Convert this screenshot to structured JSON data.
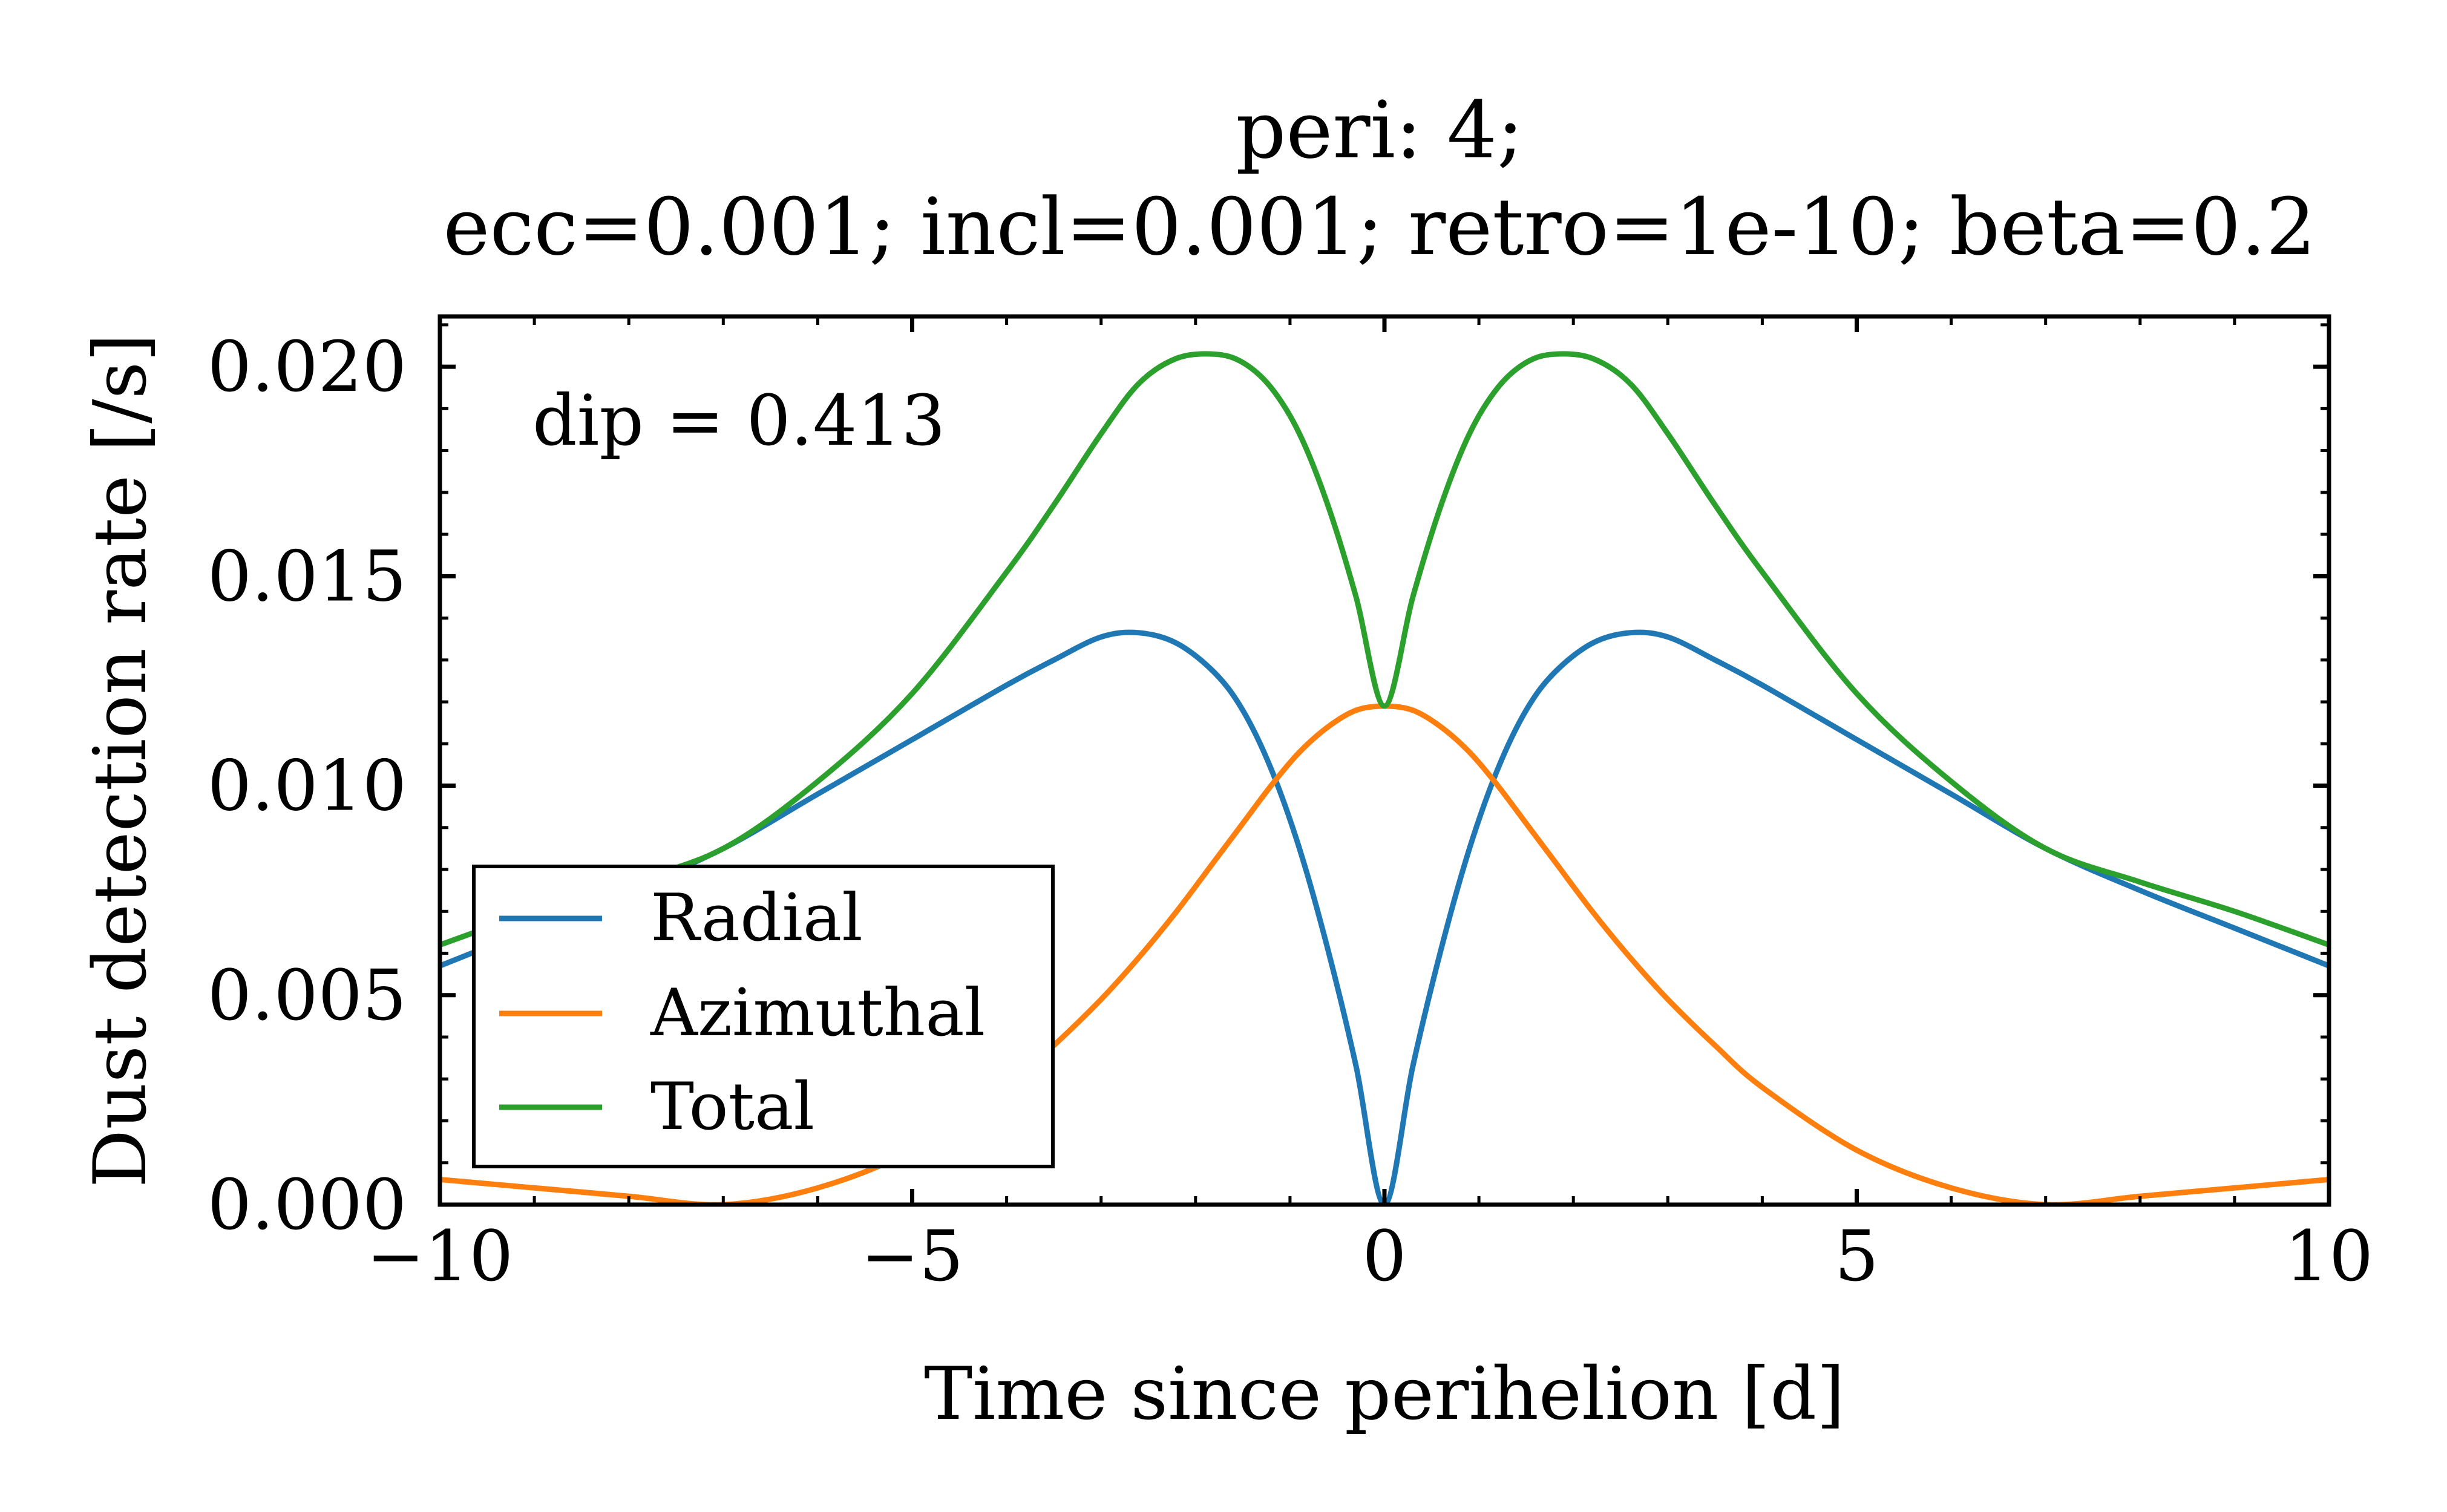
{
  "chart_data": {
    "type": "line",
    "title_lines": [
      "peri: 4;",
      "ecc=0.001; incl=0.001; retro=1e-10; beta=0.2"
    ],
    "xlabel": "Time since perihelion [d]",
    "ylabel": "Dust detection rate [/s]",
    "xlim": [
      -10,
      10
    ],
    "ylim": [
      0.0,
      0.0212
    ],
    "xticks": [
      -10,
      -5,
      0,
      5,
      10
    ],
    "xtick_labels": [
      "−10",
      "−5",
      "0",
      "5",
      "10"
    ],
    "yticks": [
      0.0,
      0.005,
      0.01,
      0.015,
      0.02
    ],
    "ytick_labels": [
      "0.000",
      "0.005",
      "0.010",
      "0.015",
      "0.020"
    ],
    "grid": false,
    "legend_position": "lower-left",
    "annotation": "dip = 0.413",
    "x": [
      -10,
      -9,
      -8,
      -7,
      -6,
      -5,
      -4,
      -3.5,
      -3,
      -2.6,
      -2.2,
      -1.8,
      -1.5,
      -1.2,
      -0.9,
      -0.6,
      -0.3,
      0,
      0.3,
      0.6,
      0.9,
      1.2,
      1.5,
      1.8,
      2.2,
      2.6,
      3,
      3.5,
      4,
      5,
      6,
      7,
      8,
      9,
      10
    ],
    "series": [
      {
        "name": "Radial",
        "color": "#1f77b4",
        "values": [
          0.0057,
          0.0066,
          0.0075,
          0.0085,
          0.0098,
          0.0111,
          0.0124,
          0.013,
          0.01355,
          0.01365,
          0.0134,
          0.0127,
          0.0118,
          0.0104,
          0.0085,
          0.0061,
          0.0033,
          0.0,
          0.0033,
          0.0061,
          0.0085,
          0.0104,
          0.0118,
          0.0127,
          0.0134,
          0.01365,
          0.01355,
          0.013,
          0.0124,
          0.0111,
          0.0098,
          0.0085,
          0.0075,
          0.0066,
          0.0057
        ]
      },
      {
        "name": "Azimuthal",
        "color": "#ff7f0e",
        "values": [
          0.0006,
          0.0004,
          0.0002,
          0.0,
          0.0004,
          0.0013,
          0.0028,
          0.0038,
          0.0049,
          0.0059,
          0.007,
          0.0082,
          0.0091,
          0.01,
          0.0108,
          0.0114,
          0.0118,
          0.0119,
          0.0118,
          0.0114,
          0.0108,
          0.01,
          0.0091,
          0.0082,
          0.007,
          0.0059,
          0.0049,
          0.0038,
          0.0028,
          0.0013,
          0.0004,
          0.0,
          0.0002,
          0.0004,
          0.0006
        ]
      },
      {
        "name": "Total",
        "color": "#2ca02c",
        "values": [
          0.0062,
          0.007,
          0.0077,
          0.0085,
          0.0101,
          0.0122,
          0.0151,
          0.0167,
          0.0184,
          0.0196,
          0.0202,
          0.0203,
          0.0201,
          0.0195,
          0.0184,
          0.0167,
          0.0145,
          0.0119,
          0.0145,
          0.0167,
          0.0184,
          0.0195,
          0.0201,
          0.0203,
          0.0202,
          0.0196,
          0.0184,
          0.0167,
          0.0151,
          0.0122,
          0.0101,
          0.0085,
          0.0077,
          0.007,
          0.0062
        ]
      }
    ]
  }
}
